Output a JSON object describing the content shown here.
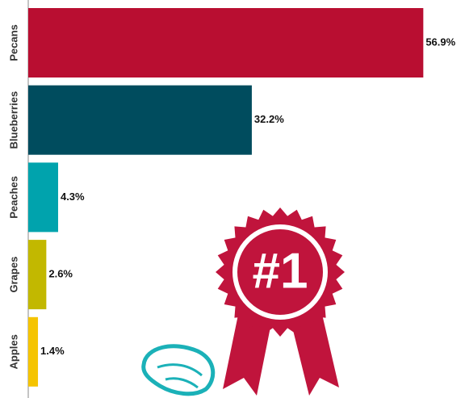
{
  "chart_data": {
    "type": "hbar",
    "categories": [
      "Pecans",
      "Blueberries",
      "Peaches",
      "Grapes",
      "Apples"
    ],
    "values": [
      56.9,
      32.2,
      4.3,
      2.6,
      1.4
    ],
    "value_labels": [
      "56.9%",
      "32.2%",
      "4.3%",
      "2.6%",
      "1.4%"
    ],
    "colors": [
      "#b90e31",
      "#004c5e",
      "#00a3ad",
      "#c2b800",
      "#f5c400"
    ],
    "annotations": [
      "#1"
    ]
  }
}
